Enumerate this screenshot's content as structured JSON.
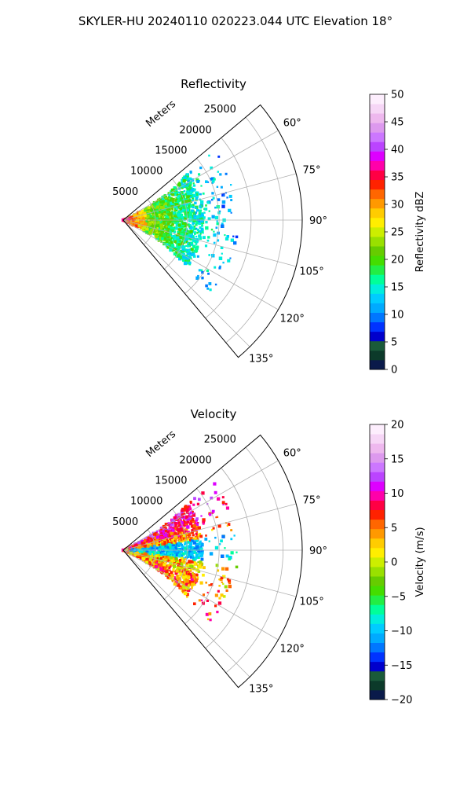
{
  "figure": {
    "title": "SKYLER-HU  20240110  020223.044 UTC Elevation 18°"
  },
  "chart_data": [
    {
      "type": "polar-sector-scan",
      "title": "Reflectivity",
      "range_label": "Meters",
      "range_ticks": [
        5000,
        10000,
        15000,
        20000,
        25000
      ],
      "range_tick_labels": [
        "5000",
        "10000",
        "15000",
        "20000",
        "25000"
      ],
      "range_max": 28000,
      "azimuth_min_deg": 50,
      "azimuth_max_deg": 140,
      "azimuth_ticks": [
        60,
        75,
        90,
        105,
        120,
        135
      ],
      "azimuth_tick_labels": [
        "60°",
        "75°",
        "90°",
        "105°",
        "120°",
        "135°"
      ],
      "grid": true,
      "colorbar": {
        "label": "Reflectivity dBZ",
        "min": 0,
        "max": 50,
        "ticks": [
          0,
          5,
          10,
          15,
          20,
          25,
          30,
          35,
          40,
          45,
          50
        ],
        "tick_labels": [
          "0",
          "5",
          "10",
          "15",
          "20",
          "25",
          "30",
          "35",
          "40",
          "45",
          "50"
        ],
        "colors": [
          "#0a1a4a",
          "#0c3a2a",
          "#1a5a3a",
          "#0000cc",
          "#0033ff",
          "#0077ff",
          "#00aaff",
          "#00ccff",
          "#00eedd",
          "#00ff99",
          "#22ee44",
          "#44dd00",
          "#66cc00",
          "#99e000",
          "#ccee00",
          "#ffee00",
          "#ffcc00",
          "#ff9900",
          "#ff6600",
          "#ff2200",
          "#ff0044",
          "#ff00aa",
          "#dd00ff",
          "#bb44ff",
          "#cc77ff",
          "#dd99ee",
          "#eeb8ee",
          "#f6d6f6",
          "#fdeefd"
        ]
      },
      "echo_summary": {
        "max_range_m": 18000,
        "near_value": 35,
        "mid_value": 22,
        "far_value": 13
      }
    },
    {
      "type": "polar-sector-scan",
      "title": "Velocity",
      "range_label": "Meters",
      "range_ticks": [
        5000,
        10000,
        15000,
        20000,
        25000
      ],
      "range_tick_labels": [
        "5000",
        "10000",
        "15000",
        "20000",
        "25000"
      ],
      "range_max": 28000,
      "azimuth_min_deg": 50,
      "azimuth_max_deg": 140,
      "azimuth_ticks": [
        60,
        75,
        90,
        105,
        120,
        135
      ],
      "azimuth_tick_labels": [
        "60°",
        "75°",
        "90°",
        "105°",
        "120°",
        "135°"
      ],
      "grid": true,
      "colorbar": {
        "label": "Velocity (m/s)",
        "min": -20,
        "max": 20,
        "ticks": [
          -20,
          -15,
          -10,
          -5,
          0,
          5,
          10,
          15,
          20
        ],
        "tick_labels": [
          "−20",
          "−15",
          "−10",
          "−5",
          "0",
          "5",
          "10",
          "15",
          "20"
        ],
        "colors": [
          "#0a1a4a",
          "#0c3a2a",
          "#1a5a3a",
          "#0000cc",
          "#0033ff",
          "#0077ff",
          "#00aaff",
          "#00ccff",
          "#00eedd",
          "#00ff99",
          "#22ee44",
          "#44dd00",
          "#66cc00",
          "#99e000",
          "#ccee00",
          "#ffee00",
          "#ffcc00",
          "#ff9900",
          "#ff6600",
          "#ff2200",
          "#ff0044",
          "#ff00aa",
          "#dd00ff",
          "#bb44ff",
          "#cc77ff",
          "#dd99ee",
          "#eeb8ee",
          "#f6d6f6",
          "#fdeefd"
        ]
      },
      "echo_summary": {
        "max_range_m": 18000,
        "north_value": 10,
        "south_value": 5,
        "center_value": -10
      }
    }
  ]
}
